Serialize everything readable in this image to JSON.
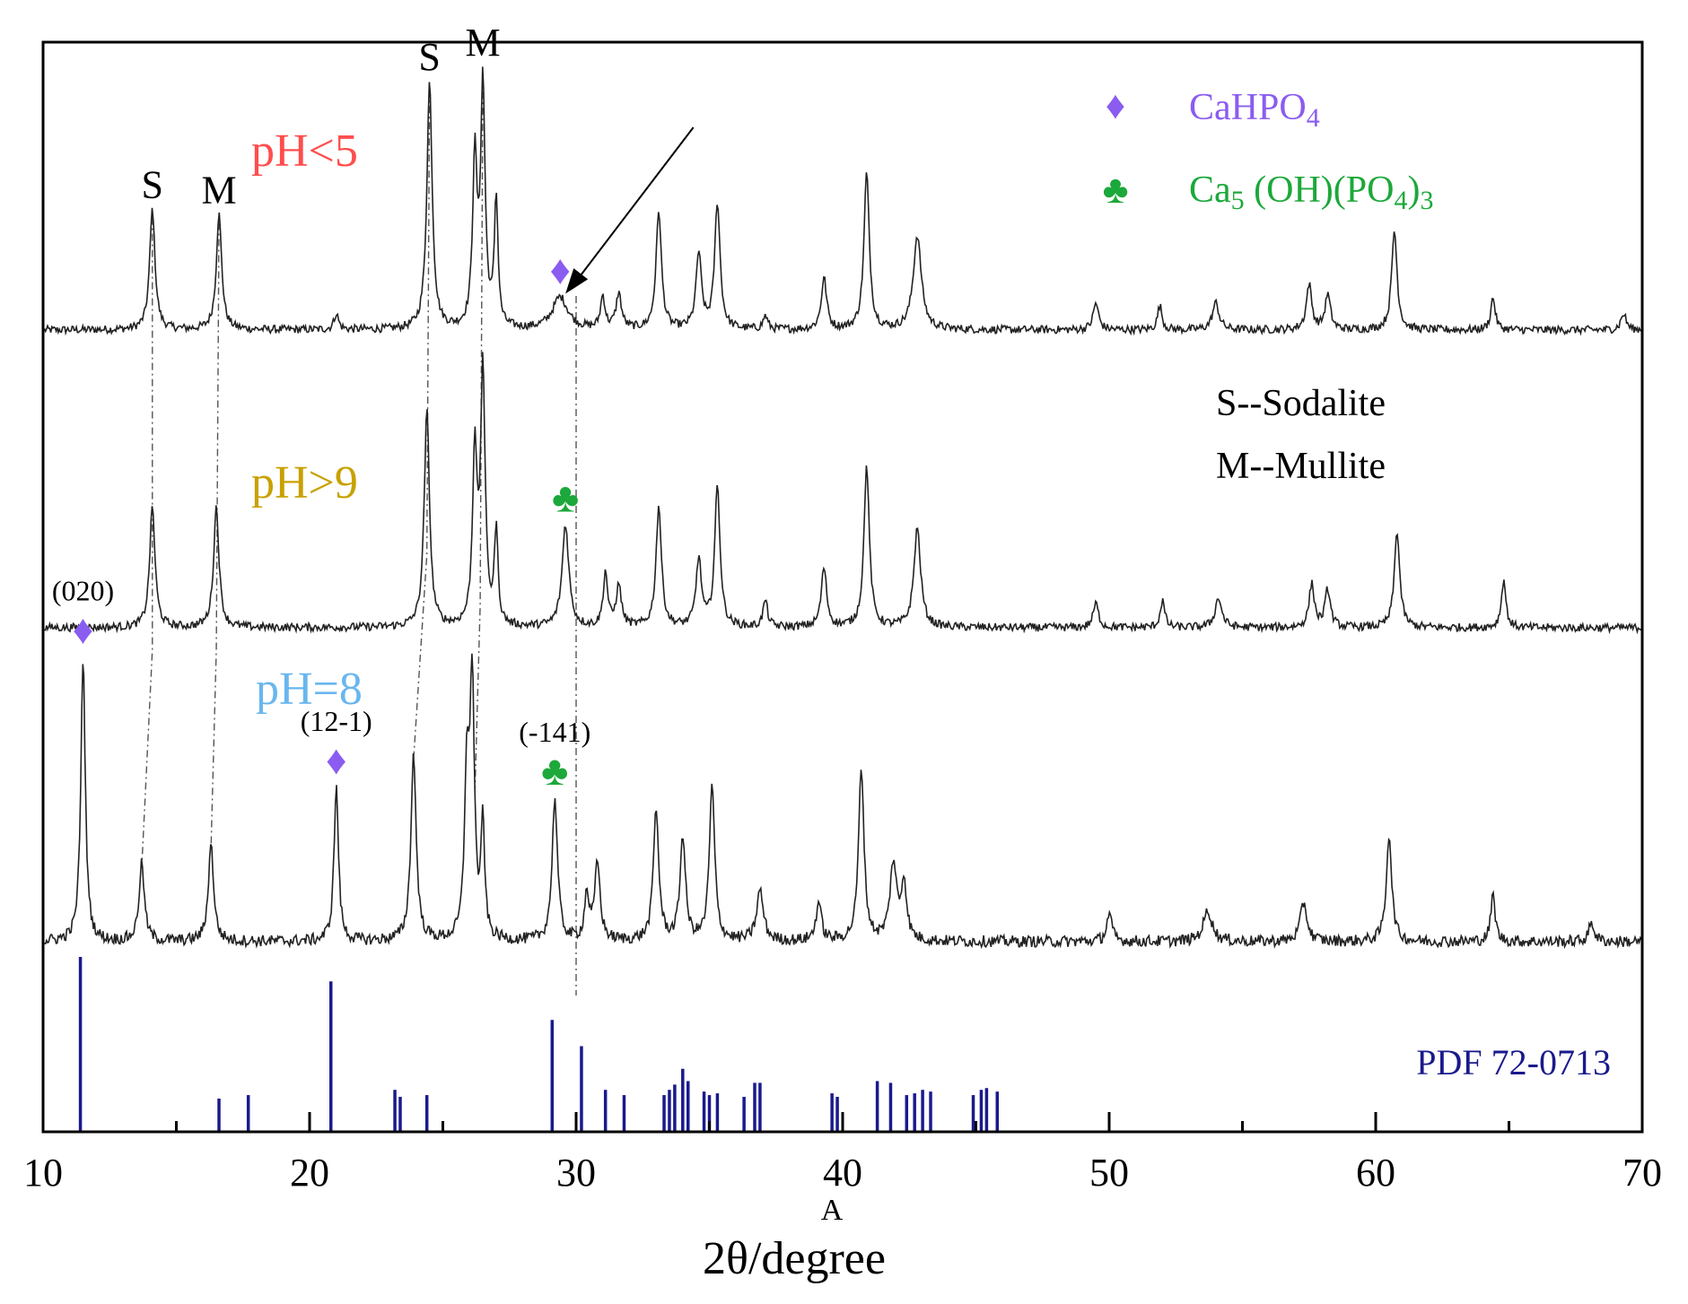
{
  "chart_data": {
    "type": "line",
    "title": "",
    "xlabel": "2θ/degree",
    "xlabel_extra": "A",
    "ylabel": "",
    "xlim": [
      10,
      70
    ],
    "x_ticks": [
      10,
      20,
      30,
      40,
      50,
      60,
      70
    ],
    "grid": false,
    "legend_position": "top-right",
    "legend": [
      {
        "marker": "♦",
        "label": "CaHPO",
        "sub": "4",
        "color": "#8a5cf0"
      },
      {
        "marker": "♣",
        "label_parts": [
          "Ca",
          "5",
          " (OH)(PO",
          "4",
          ")",
          "3"
        ],
        "color": "#1ca83a"
      }
    ],
    "phase_legend": [
      "S--Sodalite",
      "M--Mullite"
    ],
    "series": [
      {
        "name": "pH<5",
        "color": "#ff4d4d",
        "baseline": 0.0,
        "peaks": [
          {
            "x": 14.1,
            "h": 0.45,
            "w": 0.12
          },
          {
            "x": 16.6,
            "h": 0.43,
            "w": 0.12
          },
          {
            "x": 21.0,
            "h": 0.06,
            "w": 0.1
          },
          {
            "x": 24.5,
            "h": 0.92,
            "w": 0.12
          },
          {
            "x": 26.2,
            "h": 0.62,
            "w": 0.1
          },
          {
            "x": 26.5,
            "h": 0.9,
            "w": 0.1
          },
          {
            "x": 27.0,
            "h": 0.48,
            "w": 0.08
          },
          {
            "x": 29.4,
            "h": 0.12,
            "w": 0.35
          },
          {
            "x": 31.0,
            "h": 0.12,
            "w": 0.1
          },
          {
            "x": 31.6,
            "h": 0.13,
            "w": 0.12
          },
          {
            "x": 33.1,
            "h": 0.44,
            "w": 0.12
          },
          {
            "x": 34.6,
            "h": 0.28,
            "w": 0.12
          },
          {
            "x": 35.3,
            "h": 0.47,
            "w": 0.12
          },
          {
            "x": 37.1,
            "h": 0.05,
            "w": 0.1
          },
          {
            "x": 39.3,
            "h": 0.19,
            "w": 0.12
          },
          {
            "x": 40.9,
            "h": 0.58,
            "w": 0.12
          },
          {
            "x": 42.8,
            "h": 0.35,
            "w": 0.18
          },
          {
            "x": 49.5,
            "h": 0.1,
            "w": 0.12
          },
          {
            "x": 51.9,
            "h": 0.09,
            "w": 0.1
          },
          {
            "x": 54.0,
            "h": 0.1,
            "w": 0.15
          },
          {
            "x": 57.5,
            "h": 0.17,
            "w": 0.12
          },
          {
            "x": 58.2,
            "h": 0.13,
            "w": 0.12
          },
          {
            "x": 60.7,
            "h": 0.37,
            "w": 0.12
          },
          {
            "x": 64.4,
            "h": 0.12,
            "w": 0.1
          },
          {
            "x": 69.3,
            "h": 0.06,
            "w": 0.12
          }
        ]
      },
      {
        "name": "pH>9",
        "color": "#c8a100",
        "baseline": 0.0,
        "peaks": [
          {
            "x": 14.1,
            "h": 0.45,
            "w": 0.12
          },
          {
            "x": 16.5,
            "h": 0.45,
            "w": 0.12
          },
          {
            "x": 24.4,
            "h": 0.8,
            "w": 0.12
          },
          {
            "x": 26.2,
            "h": 0.65,
            "w": 0.1
          },
          {
            "x": 26.5,
            "h": 0.95,
            "w": 0.1
          },
          {
            "x": 27.0,
            "h": 0.35,
            "w": 0.08
          },
          {
            "x": 29.6,
            "h": 0.38,
            "w": 0.15
          },
          {
            "x": 31.1,
            "h": 0.2,
            "w": 0.1
          },
          {
            "x": 31.6,
            "h": 0.15,
            "w": 0.12
          },
          {
            "x": 33.1,
            "h": 0.45,
            "w": 0.12
          },
          {
            "x": 34.6,
            "h": 0.25,
            "w": 0.12
          },
          {
            "x": 35.3,
            "h": 0.52,
            "w": 0.12
          },
          {
            "x": 37.1,
            "h": 0.1,
            "w": 0.1
          },
          {
            "x": 39.3,
            "h": 0.22,
            "w": 0.12
          },
          {
            "x": 40.9,
            "h": 0.6,
            "w": 0.12
          },
          {
            "x": 42.8,
            "h": 0.37,
            "w": 0.15
          },
          {
            "x": 49.5,
            "h": 0.09,
            "w": 0.12
          },
          {
            "x": 52.0,
            "h": 0.1,
            "w": 0.1
          },
          {
            "x": 54.1,
            "h": 0.11,
            "w": 0.15
          },
          {
            "x": 57.6,
            "h": 0.16,
            "w": 0.12
          },
          {
            "x": 58.2,
            "h": 0.14,
            "w": 0.12
          },
          {
            "x": 60.8,
            "h": 0.36,
            "w": 0.12
          },
          {
            "x": 64.8,
            "h": 0.18,
            "w": 0.1
          }
        ]
      },
      {
        "name": "pH=8",
        "color": "#69b6ee",
        "baseline": 0.0,
        "peaks": [
          {
            "x": 11.5,
            "h": 0.74,
            "w": 0.1
          },
          {
            "x": 13.7,
            "h": 0.2,
            "w": 0.12
          },
          {
            "x": 16.3,
            "h": 0.25,
            "w": 0.12
          },
          {
            "x": 21.0,
            "h": 0.4,
            "w": 0.1
          },
          {
            "x": 23.9,
            "h": 0.48,
            "w": 0.12
          },
          {
            "x": 25.9,
            "h": 0.42,
            "w": 0.1
          },
          {
            "x": 26.1,
            "h": 0.66,
            "w": 0.1
          },
          {
            "x": 26.5,
            "h": 0.3,
            "w": 0.08
          },
          {
            "x": 29.2,
            "h": 0.37,
            "w": 0.12
          },
          {
            "x": 30.4,
            "h": 0.12,
            "w": 0.1
          },
          {
            "x": 30.8,
            "h": 0.2,
            "w": 0.12
          },
          {
            "x": 33.0,
            "h": 0.34,
            "w": 0.12
          },
          {
            "x": 34.0,
            "h": 0.27,
            "w": 0.12
          },
          {
            "x": 35.1,
            "h": 0.4,
            "w": 0.12
          },
          {
            "x": 36.9,
            "h": 0.13,
            "w": 0.15
          },
          {
            "x": 39.1,
            "h": 0.1,
            "w": 0.12
          },
          {
            "x": 40.7,
            "h": 0.45,
            "w": 0.12
          },
          {
            "x": 41.9,
            "h": 0.2,
            "w": 0.15
          },
          {
            "x": 42.3,
            "h": 0.15,
            "w": 0.12
          },
          {
            "x": 50.0,
            "h": 0.07,
            "w": 0.12
          },
          {
            "x": 53.7,
            "h": 0.08,
            "w": 0.2
          },
          {
            "x": 57.3,
            "h": 0.1,
            "w": 0.15
          },
          {
            "x": 60.5,
            "h": 0.28,
            "w": 0.12
          },
          {
            "x": 64.4,
            "h": 0.12,
            "w": 0.1
          },
          {
            "x": 68.1,
            "h": 0.05,
            "w": 0.12
          }
        ]
      }
    ],
    "reference_pattern": {
      "label": "PDF 72-0713",
      "color": "#1a1a8c",
      "lines": [
        {
          "x": 11.4,
          "i": 1.0
        },
        {
          "x": 16.6,
          "i": 0.19
        },
        {
          "x": 17.7,
          "i": 0.21
        },
        {
          "x": 20.8,
          "i": 0.86
        },
        {
          "x": 23.2,
          "i": 0.24
        },
        {
          "x": 23.4,
          "i": 0.2
        },
        {
          "x": 24.4,
          "i": 0.21
        },
        {
          "x": 29.1,
          "i": 0.64
        },
        {
          "x": 30.2,
          "i": 0.49
        },
        {
          "x": 31.1,
          "i": 0.24
        },
        {
          "x": 31.8,
          "i": 0.21
        },
        {
          "x": 33.3,
          "i": 0.21
        },
        {
          "x": 33.5,
          "i": 0.24
        },
        {
          "x": 33.7,
          "i": 0.27
        },
        {
          "x": 34.0,
          "i": 0.36
        },
        {
          "x": 34.2,
          "i": 0.29
        },
        {
          "x": 34.8,
          "i": 0.23
        },
        {
          "x": 35.0,
          "i": 0.21
        },
        {
          "x": 35.3,
          "i": 0.22
        },
        {
          "x": 36.3,
          "i": 0.2
        },
        {
          "x": 36.7,
          "i": 0.28
        },
        {
          "x": 36.9,
          "i": 0.28
        },
        {
          "x": 39.6,
          "i": 0.22
        },
        {
          "x": 39.8,
          "i": 0.2
        },
        {
          "x": 41.3,
          "i": 0.29
        },
        {
          "x": 41.8,
          "i": 0.28
        },
        {
          "x": 42.4,
          "i": 0.21
        },
        {
          "x": 42.7,
          "i": 0.22
        },
        {
          "x": 43.0,
          "i": 0.24
        },
        {
          "x": 43.3,
          "i": 0.23
        },
        {
          "x": 44.9,
          "i": 0.21
        },
        {
          "x": 45.2,
          "i": 0.24
        },
        {
          "x": 45.4,
          "i": 0.25
        },
        {
          "x": 45.8,
          "i": 0.23
        }
      ]
    },
    "annotations": {
      "phase_labels": [
        {
          "text": "S",
          "x": 14.1,
          "trace": 0
        },
        {
          "text": "M",
          "x": 16.6,
          "trace": 0
        },
        {
          "text": "S",
          "x": 24.5,
          "trace": 0
        },
        {
          "text": "M",
          "x": 26.5,
          "trace": 0
        }
      ],
      "hkl_labels": [
        {
          "text": "(020)",
          "x": 11.5
        },
        {
          "text": "(12-1)",
          "x": 21.0
        },
        {
          "text": "(-141)",
          "x": 29.2
        }
      ],
      "markers": [
        {
          "symbol": "♦",
          "x": 29.4,
          "trace": 0,
          "color": "#8a5cf0"
        },
        {
          "symbol": "♣",
          "x": 29.6,
          "trace": 1,
          "color": "#1ca83a"
        },
        {
          "symbol": "♦",
          "x": 11.5,
          "trace": 2,
          "color": "#8a5cf0"
        },
        {
          "symbol": "♦",
          "x": 21.0,
          "trace": 2,
          "color": "#8a5cf0"
        },
        {
          "symbol": "♣",
          "x": 29.2,
          "trace": 2,
          "color": "#1ca83a"
        }
      ],
      "guide_lines": [
        {
          "xs": [
            14.1,
            14.1,
            13.7
          ]
        },
        {
          "xs": [
            16.6,
            16.5,
            16.3
          ]
        },
        {
          "xs": [
            24.5,
            24.4,
            23.9
          ]
        },
        {
          "xs": [
            26.5,
            26.4,
            26.2
          ]
        },
        {
          "xs": [
            30.0,
            30.0,
            30.0
          ],
          "to_ref": true
        }
      ]
    }
  }
}
